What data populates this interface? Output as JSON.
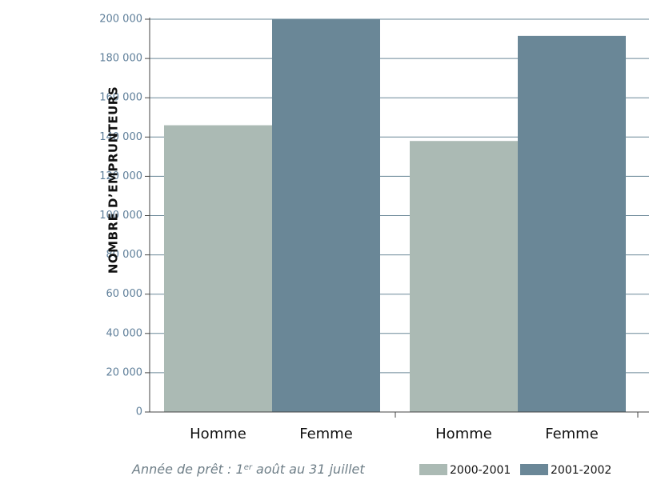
{
  "chart_data": {
    "type": "bar",
    "ylabel": "NOMBRE D’EMPRUNTEURS",
    "ylim": [
      0,
      200000
    ],
    "yticks": [
      0,
      20000,
      40000,
      60000,
      80000,
      100000,
      120000,
      140000,
      160000,
      180000,
      200000
    ],
    "ytick_labels": [
      "0",
      "20 000",
      "40 000",
      "60 000",
      "80 000",
      "100 000",
      "120 000",
      "140 000",
      "160 000",
      "180 000",
      "200 000"
    ],
    "categories": [
      "Homme",
      "Femme",
      "Homme",
      "Femme"
    ],
    "series": [
      {
        "name": "2000-2001",
        "color": "#abbab4",
        "values": [
          146000,
          null,
          138000,
          null
        ]
      },
      {
        "name": "2001-2002",
        "color": "#6a8797",
        "values": [
          null,
          200000,
          null,
          191500
        ]
      }
    ],
    "grid": true,
    "legend_position": "bottom-right"
  },
  "footer": {
    "note_before": "Année de prêt : 1",
    "note_sup": "er",
    "note_after": " août au 31 juillet"
  },
  "colors": {
    "gridline": "#6a8797",
    "axis": "#444444"
  }
}
